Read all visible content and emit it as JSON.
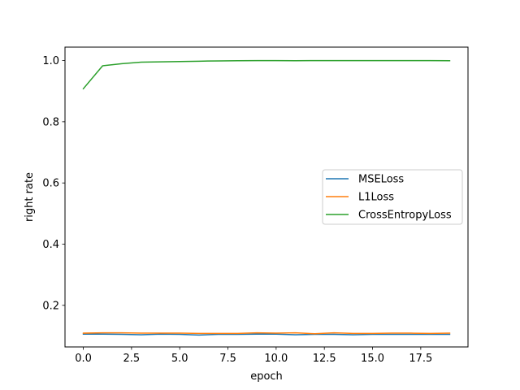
{
  "chart_data": {
    "type": "line",
    "title": "",
    "xlabel": "epoch",
    "ylabel": "right rate",
    "xlim": [
      -0.95,
      19.95
    ],
    "ylim": [
      0.064,
      1.044
    ],
    "x_ticks": [
      0.0,
      2.5,
      5.0,
      7.5,
      10.0,
      12.5,
      15.0,
      17.5
    ],
    "x_tick_labels": [
      "0.0",
      "2.5",
      "5.0",
      "7.5",
      "10.0",
      "12.5",
      "15.0",
      "17.5"
    ],
    "y_ticks": [
      0.2,
      0.4,
      0.6,
      0.8,
      1.0
    ],
    "y_tick_labels": [
      "0.2",
      "0.4",
      "0.6",
      "0.8",
      "1.0"
    ],
    "grid": false,
    "legend_position": "center-right",
    "x": [
      0,
      1,
      2,
      3,
      4,
      5,
      6,
      7,
      8,
      9,
      10,
      11,
      12,
      13,
      14,
      15,
      16,
      17,
      18,
      19
    ],
    "series": [
      {
        "name": "MSELoss",
        "color": "#1f77b4",
        "values": [
          0.106,
          0.106,
          0.105,
          0.104,
          0.106,
          0.105,
          0.103,
          0.105,
          0.105,
          0.106,
          0.106,
          0.104,
          0.105,
          0.105,
          0.104,
          0.105,
          0.105,
          0.105,
          0.105,
          0.105
        ]
      },
      {
        "name": "L1Loss",
        "color": "#ff7f0e",
        "values": [
          0.109,
          0.11,
          0.11,
          0.109,
          0.109,
          0.109,
          0.108,
          0.108,
          0.108,
          0.11,
          0.109,
          0.11,
          0.107,
          0.11,
          0.108,
          0.108,
          0.109,
          0.109,
          0.108,
          0.109
        ]
      },
      {
        "name": "CrossEntropyLoss",
        "color": "#2ca02c",
        "values": [
          0.908,
          0.983,
          0.99,
          0.995,
          0.996,
          0.997,
          0.998,
          0.999,
          0.9995,
          1.0,
          1.0,
          0.9995,
          1.0,
          1.0,
          1.0,
          1.0,
          1.0,
          1.0,
          1.0,
          0.9995
        ]
      }
    ]
  }
}
